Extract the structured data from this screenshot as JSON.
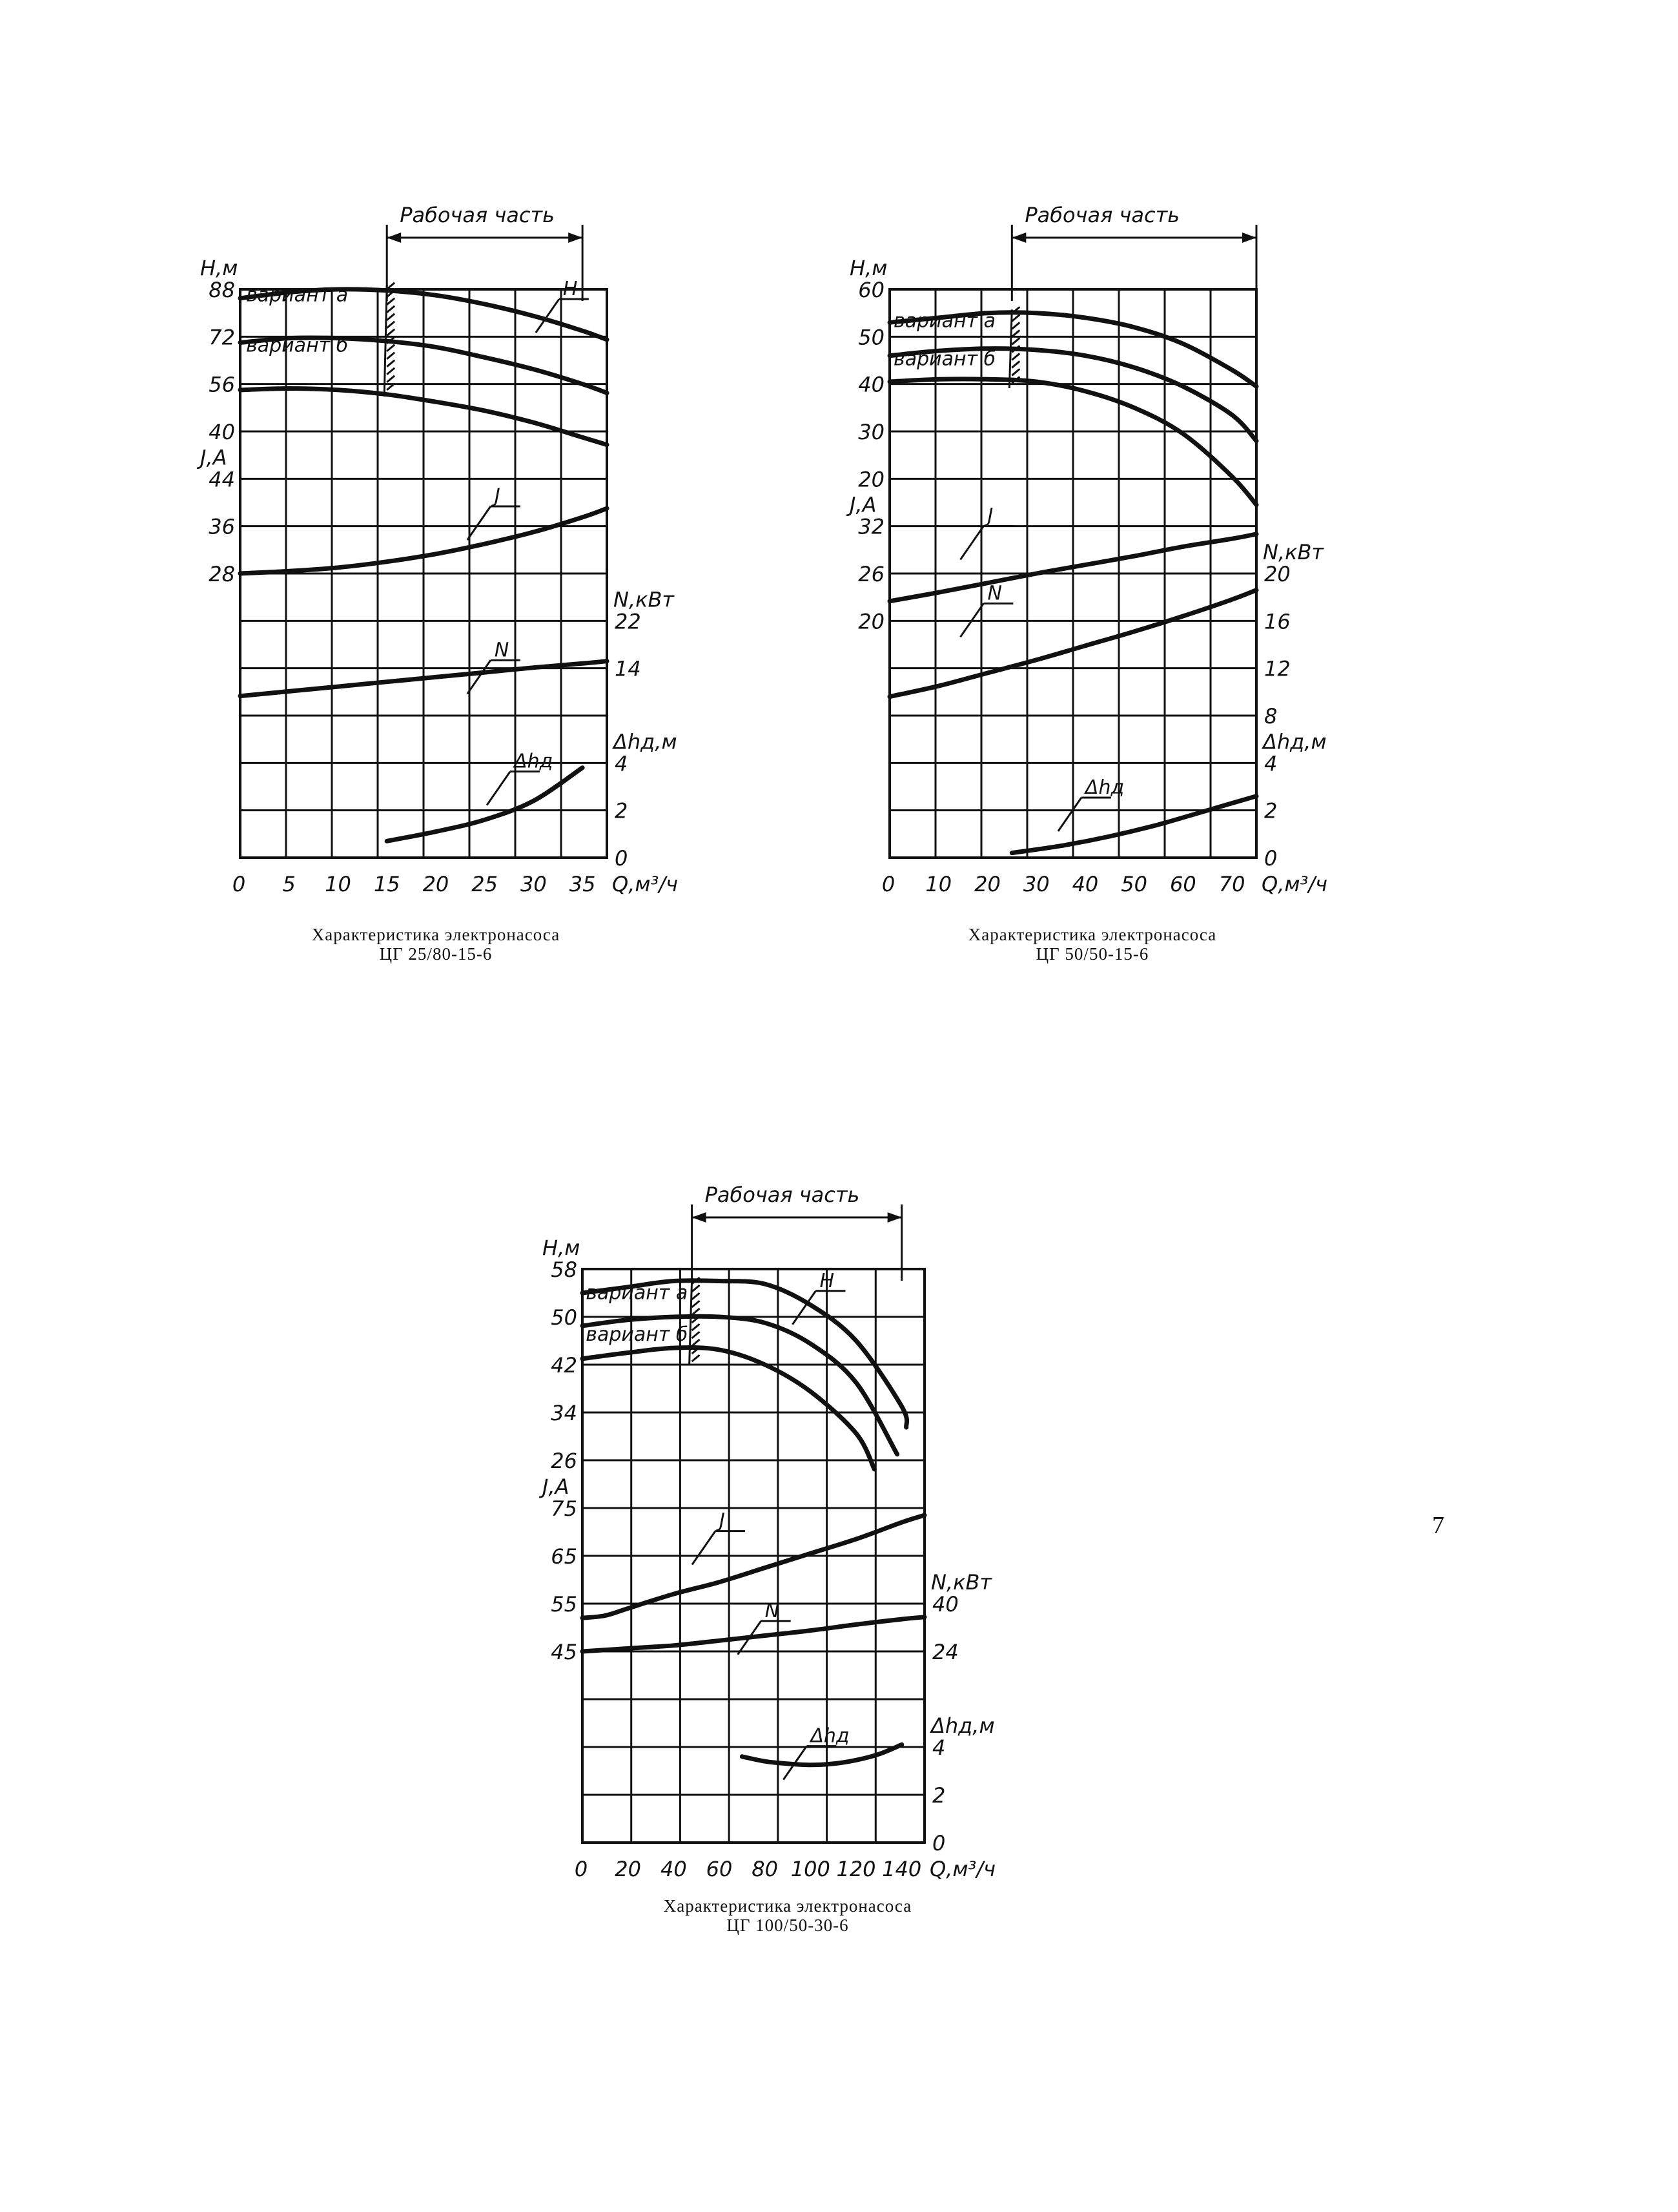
{
  "page_number": "7",
  "chart_data": [
    {
      "type": "line",
      "caption": [
        "Характеристика электронасоса",
        "ЦГ 25/80-15-6"
      ],
      "work_label": "Рабочая часть",
      "work_range": [
        15,
        35
      ],
      "x_label": "Q,м³/ч",
      "x_ticks": [
        "0",
        "5",
        "10",
        "15",
        "20",
        "25",
        "30",
        "35"
      ],
      "x_range": [
        0,
        37.5
      ],
      "rows": 12,
      "axes": {
        "H": {
          "label": "Н,м",
          "side": "left",
          "from_row": 0,
          "to_row": 3,
          "range": [
            88,
            40
          ],
          "ticks": [
            "88",
            "72",
            "56",
            "40"
          ]
        },
        "J": {
          "label": "J,A",
          "side": "left",
          "from_row": 4,
          "to_row": 6,
          "range": [
            44,
            28
          ],
          "ticks": [
            "44",
            "36",
            "28"
          ]
        },
        "N": {
          "label": "N,кВт",
          "side": "right",
          "from_row": 7,
          "to_row": 8,
          "range": [
            22,
            14
          ],
          "ticks": [
            "22",
            "14"
          ]
        },
        "dh": {
          "label": "Δhд,м",
          "side": "right",
          "from_row": 10,
          "to_row": 12,
          "range": [
            4,
            0
          ],
          "ticks": [
            "4",
            "2",
            "0"
          ]
        }
      },
      "curve_labels": {
        "a": "вариант а",
        "b": "вариант б",
        "H": "Н",
        "J": "J",
        "N": "N",
        "dh": "Δhд"
      },
      "series": [
        {
          "name": "вариант а",
          "axis": "H",
          "x": [
            0,
            5,
            10,
            15,
            20,
            25,
            30,
            35,
            37.5
          ],
          "y": [
            85,
            87,
            88,
            87.6,
            86,
            83,
            79,
            74,
            71
          ]
        },
        {
          "name": "вариант б",
          "axis": "H",
          "x": [
            0,
            5,
            10,
            15,
            20,
            25,
            30,
            35,
            37.5
          ],
          "y": [
            70,
            71.5,
            71.5,
            70.5,
            68.5,
            65,
            61,
            56,
            53
          ]
        },
        {
          "name": "",
          "axis": "H",
          "x": [
            0,
            5,
            10,
            15,
            20,
            25,
            30,
            35,
            37.5
          ],
          "y": [
            54,
            54.5,
            54,
            52.5,
            50,
            47,
            43,
            38,
            35.5
          ]
        },
        {
          "name": "J",
          "axis": "J",
          "x": [
            0,
            5,
            10,
            15,
            20,
            25,
            30,
            35,
            37.5
          ],
          "y": [
            28,
            28.4,
            29,
            30,
            31.3,
            33,
            35,
            37.5,
            39
          ]
        },
        {
          "name": "N",
          "axis": "N",
          "x": [
            0,
            5,
            10,
            15,
            20,
            25,
            30,
            35,
            37.5
          ],
          "y": [
            9.3,
            10.1,
            10.9,
            11.7,
            12.5,
            13.3,
            14.1,
            14.8,
            15.2
          ]
        },
        {
          "name": "Δhд",
          "axis": "dh",
          "x": [
            15,
            20,
            25,
            30,
            35
          ],
          "y": [
            0.7,
            1.1,
            1.6,
            2.4,
            3.8
          ]
        }
      ]
    },
    {
      "type": "line",
      "caption": [
        "Характеристика электронасоса",
        "ЦГ 50/50-15-6"
      ],
      "work_label": "Рабочая часть",
      "work_range": [
        25,
        75
      ],
      "x_label": "Q,м³/ч",
      "x_ticks": [
        "0",
        "10",
        "20",
        "30",
        "40",
        "50",
        "60",
        "70"
      ],
      "x_range": [
        0,
        75
      ],
      "rows": 12,
      "axes": {
        "H": {
          "label": "Н,м",
          "side": "left",
          "from_row": 0,
          "to_row": 4,
          "range": [
            60,
            20
          ],
          "ticks": [
            "60",
            "50",
            "40",
            "30",
            "20"
          ]
        },
        "J": {
          "label": "J,A",
          "side": "left",
          "from_row": 5,
          "to_row": 7,
          "range": [
            32,
            20
          ],
          "ticks": [
            "32",
            "26",
            "20"
          ]
        },
        "N": {
          "label": "N,кВт",
          "side": "right",
          "from_row": 6,
          "to_row": 9,
          "range": [
            20,
            8
          ],
          "ticks": [
            "20",
            "16",
            "12",
            "8"
          ]
        },
        "dh": {
          "label": "Δhд,м",
          "side": "right",
          "from_row": 10,
          "to_row": 12,
          "range": [
            4,
            0
          ],
          "ticks": [
            "4",
            "2",
            "0"
          ]
        }
      },
      "curve_labels": {
        "a": "вариант а",
        "b": "вариант б",
        "H": "",
        "J": "J",
        "N": "N",
        "dh": "Δhд"
      },
      "series": [
        {
          "name": "вариант а",
          "axis": "H",
          "x": [
            0,
            10,
            20,
            30,
            40,
            50,
            60,
            70,
            75
          ],
          "y": [
            53,
            54,
            55,
            55,
            54,
            52,
            48.5,
            43,
            39.5
          ]
        },
        {
          "name": "вариант б",
          "axis": "H",
          "x": [
            0,
            10,
            20,
            30,
            40,
            50,
            60,
            70,
            75
          ],
          "y": [
            46,
            47,
            47.5,
            47.2,
            46,
            43.5,
            39.5,
            33.5,
            28
          ]
        },
        {
          "name": "",
          "axis": "H",
          "x": [
            0,
            10,
            20,
            30,
            40,
            50,
            60,
            70,
            75
          ],
          "y": [
            40.5,
            41,
            41,
            40.5,
            38.5,
            35,
            29.5,
            20.5,
            14.5
          ]
        },
        {
          "name": "J",
          "axis": "J",
          "x": [
            0,
            10,
            20,
            30,
            40,
            50,
            60,
            70,
            75
          ],
          "y": [
            22.5,
            23.6,
            24.8,
            26,
            27.1,
            28.2,
            29.4,
            30.4,
            31
          ]
        },
        {
          "name": "N",
          "axis": "N",
          "x": [
            0,
            10,
            20,
            30,
            40,
            50,
            60,
            70,
            75
          ],
          "y": [
            9.6,
            10.5,
            11.6,
            12.7,
            13.9,
            15.1,
            16.4,
            17.8,
            18.6
          ]
        },
        {
          "name": "Δhд",
          "axis": "dh",
          "x": [
            25,
            35,
            45,
            55,
            65,
            75
          ],
          "y": [
            0.2,
            0.5,
            0.9,
            1.4,
            2,
            2.6
          ]
        }
      ]
    },
    {
      "type": "line",
      "caption": [
        "Характеристика электронасоса",
        "ЦГ 100/50-30-6"
      ],
      "work_label": "Рабочая часть",
      "work_range": [
        48,
        140
      ],
      "x_label": "Q,м³/ч",
      "x_ticks": [
        "0",
        "20",
        "40",
        "60",
        "80",
        "100",
        "120",
        "140"
      ],
      "x_range": [
        0,
        150
      ],
      "rows": 12,
      "axes": {
        "H": {
          "label": "Н,м",
          "side": "left",
          "from_row": 0,
          "to_row": 4,
          "range": [
            58,
            26
          ],
          "ticks": [
            "58",
            "50",
            "42",
            "34",
            "26"
          ]
        },
        "J": {
          "label": "J,A",
          "side": "left",
          "from_row": 5,
          "to_row": 8,
          "range": [
            75,
            45
          ],
          "ticks": [
            "75",
            "65",
            "55",
            "45"
          ]
        },
        "N": {
          "label": "N,кВт",
          "side": "right",
          "from_row": 7,
          "to_row": 8,
          "range": [
            40,
            24
          ],
          "ticks": [
            "40",
            "24"
          ]
        },
        "dh": {
          "label": "Δhд,м",
          "side": "right",
          "from_row": 10,
          "to_row": 12,
          "range": [
            4,
            0
          ],
          "ticks": [
            "4",
            "2",
            "0"
          ]
        }
      },
      "curve_labels": {
        "a": "вариант а",
        "b": "вариант б",
        "H": "Н",
        "J": "J",
        "N": "N",
        "dh": "Δhд"
      },
      "series": [
        {
          "name": "вариант а",
          "axis": "H",
          "x": [
            0,
            20,
            40,
            60,
            80,
            100,
            120,
            140,
            142
          ],
          "y": [
            54,
            55,
            56,
            56,
            55.5,
            52,
            46,
            35,
            31.5
          ]
        },
        {
          "name": "вариант б",
          "axis": "H",
          "x": [
            0,
            20,
            40,
            60,
            80,
            100,
            120,
            138
          ],
          "y": [
            48.5,
            49.5,
            50,
            50,
            49,
            45.5,
            39,
            27
          ]
        },
        {
          "name": "",
          "axis": "H",
          "x": [
            0,
            20,
            40,
            60,
            80,
            100,
            120,
            128
          ],
          "y": [
            43,
            44,
            44.8,
            44.5,
            42,
            37.5,
            30.5,
            24.5
          ]
        },
        {
          "name": "J",
          "axis": "J",
          "x": [
            0,
            10,
            20,
            40,
            60,
            80,
            100,
            120,
            140,
            150
          ],
          "y": [
            52,
            52.5,
            54,
            57,
            59.5,
            62.5,
            65.5,
            68.5,
            72,
            73.5
          ]
        },
        {
          "name": "N",
          "axis": "N",
          "x": [
            0,
            20,
            40,
            60,
            80,
            100,
            120,
            140,
            150
          ],
          "y": [
            24,
            25,
            26,
            27.6,
            29.3,
            31,
            33,
            34.8,
            35.5
          ]
        },
        {
          "name": "Δhд",
          "axis": "dh",
          "x": [
            70,
            80,
            90,
            100,
            110,
            120,
            130,
            140
          ],
          "y": [
            3.6,
            3.4,
            3.3,
            3.25,
            3.3,
            3.45,
            3.7,
            4.1
          ]
        }
      ]
    }
  ]
}
